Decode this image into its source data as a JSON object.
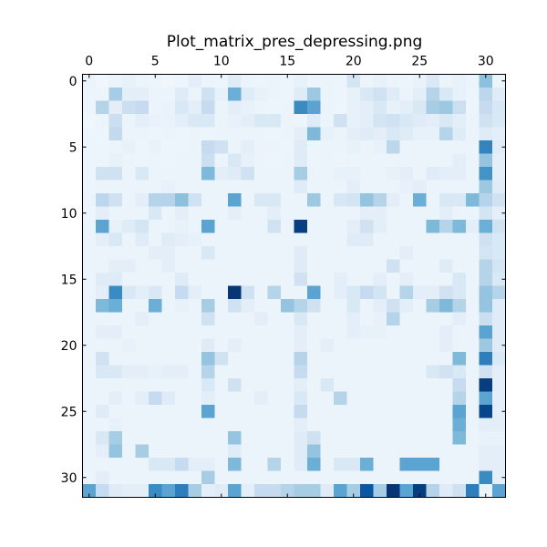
{
  "chart_data": {
    "type": "heatmap",
    "title": "Plot_matrix_pres_depressing.png",
    "xlabel": "",
    "ylabel": "",
    "rows": 32,
    "cols": 32,
    "x_ticks": [
      0,
      5,
      10,
      15,
      20,
      25,
      30
    ],
    "y_ticks": [
      0,
      5,
      10,
      15,
      20,
      25,
      30
    ],
    "x_axis_position": "top",
    "colormap": "Blues",
    "vmin": 0,
    "vmax": 1,
    "grid": false,
    "colorbar": false,
    "values": [
      [
        0.06,
        0.04,
        0.06,
        0.08,
        0.06,
        0.05,
        0.04,
        0.05,
        0.1,
        0.06,
        0.05,
        0.12,
        0.06,
        0.05,
        0.06,
        0.05,
        0.08,
        0.05,
        0.06,
        0.05,
        0.18,
        0.06,
        0.08,
        0.06,
        0.05,
        0.07,
        0.14,
        0.06,
        0.08,
        0.06,
        0.42,
        0.06
      ],
      [
        0.05,
        0.05,
        0.35,
        0.1,
        0.1,
        0.06,
        0.06,
        0.12,
        0.06,
        0.2,
        0.08,
        0.5,
        0.12,
        0.08,
        0.06,
        0.05,
        0.12,
        0.38,
        0.06,
        0.05,
        0.08,
        0.15,
        0.2,
        0.12,
        0.06,
        0.1,
        0.3,
        0.15,
        0.08,
        0.05,
        0.28,
        0.12
      ],
      [
        0.05,
        0.3,
        0.1,
        0.22,
        0.25,
        0.06,
        0.07,
        0.15,
        0.1,
        0.25,
        0.06,
        0.1,
        0.08,
        0.06,
        0.05,
        0.06,
        0.65,
        0.55,
        0.06,
        0.05,
        0.08,
        0.1,
        0.15,
        0.08,
        0.1,
        0.15,
        0.35,
        0.38,
        0.22,
        0.05,
        0.25,
        0.16
      ],
      [
        0.04,
        0.06,
        0.22,
        0.06,
        0.1,
        0.07,
        0.07,
        0.1,
        0.15,
        0.15,
        0.06,
        0.08,
        0.1,
        0.15,
        0.15,
        0.06,
        0.05,
        0.12,
        0.06,
        0.2,
        0.08,
        0.1,
        0.18,
        0.2,
        0.15,
        0.12,
        0.1,
        0.15,
        0.1,
        0.06,
        0.2,
        0.15
      ],
      [
        0.05,
        0.05,
        0.26,
        0.06,
        0.06,
        0.05,
        0.06,
        0.05,
        0.06,
        0.05,
        0.06,
        0.06,
        0.06,
        0.06,
        0.05,
        0.06,
        0.1,
        0.45,
        0.08,
        0.06,
        0.1,
        0.12,
        0.1,
        0.15,
        0.12,
        0.08,
        0.08,
        0.3,
        0.12,
        0.06,
        0.12,
        0.1
      ],
      [
        0.05,
        0.05,
        0.06,
        0.08,
        0.05,
        0.07,
        0.05,
        0.05,
        0.06,
        0.25,
        0.2,
        0.06,
        0.1,
        0.06,
        0.06,
        0.05,
        0.12,
        0.05,
        0.06,
        0.06,
        0.08,
        0.06,
        0.08,
        0.28,
        0.06,
        0.06,
        0.06,
        0.06,
        0.06,
        0.06,
        0.68,
        0.12
      ],
      [
        0.05,
        0.05,
        0.08,
        0.06,
        0.05,
        0.06,
        0.05,
        0.06,
        0.06,
        0.22,
        0.06,
        0.15,
        0.08,
        0.06,
        0.05,
        0.06,
        0.12,
        0.05,
        0.06,
        0.05,
        0.06,
        0.06,
        0.06,
        0.06,
        0.06,
        0.06,
        0.06,
        0.06,
        0.1,
        0.06,
        0.4,
        0.1
      ],
      [
        0.05,
        0.2,
        0.2,
        0.06,
        0.15,
        0.06,
        0.06,
        0.06,
        0.06,
        0.45,
        0.1,
        0.12,
        0.2,
        0.06,
        0.06,
        0.06,
        0.35,
        0.06,
        0.06,
        0.08,
        0.08,
        0.06,
        0.06,
        0.08,
        0.1,
        0.06,
        0.12,
        0.1,
        0.1,
        0.06,
        0.62,
        0.1
      ],
      [
        0.05,
        0.06,
        0.06,
        0.06,
        0.06,
        0.06,
        0.08,
        0.06,
        0.06,
        0.06,
        0.06,
        0.06,
        0.06,
        0.06,
        0.06,
        0.06,
        0.12,
        0.06,
        0.06,
        0.06,
        0.1,
        0.06,
        0.06,
        0.06,
        0.08,
        0.1,
        0.06,
        0.06,
        0.06,
        0.06,
        0.38,
        0.12
      ],
      [
        0.06,
        0.28,
        0.2,
        0.06,
        0.1,
        0.3,
        0.3,
        0.42,
        0.2,
        0.06,
        0.06,
        0.55,
        0.06,
        0.15,
        0.15,
        0.06,
        0.06,
        0.38,
        0.06,
        0.16,
        0.18,
        0.4,
        0.3,
        0.1,
        0.06,
        0.5,
        0.06,
        0.15,
        0.15,
        0.45,
        0.3,
        0.2
      ],
      [
        0.05,
        0.1,
        0.06,
        0.06,
        0.06,
        0.15,
        0.06,
        0.1,
        0.06,
        0.06,
        0.06,
        0.1,
        0.06,
        0.06,
        0.1,
        0.06,
        0.06,
        0.06,
        0.06,
        0.06,
        0.06,
        0.1,
        0.1,
        0.06,
        0.06,
        0.06,
        0.06,
        0.1,
        0.06,
        0.06,
        0.18,
        0.1
      ],
      [
        0.06,
        0.55,
        0.08,
        0.12,
        0.18,
        0.06,
        0.06,
        0.08,
        0.06,
        0.55,
        0.06,
        0.06,
        0.06,
        0.06,
        0.2,
        0.06,
        0.95,
        0.06,
        0.06,
        0.06,
        0.1,
        0.2,
        0.1,
        0.06,
        0.06,
        0.06,
        0.45,
        0.3,
        0.45,
        0.1,
        0.5,
        0.2
      ],
      [
        0.06,
        0.1,
        0.15,
        0.06,
        0.12,
        0.06,
        0.12,
        0.1,
        0.08,
        0.06,
        0.06,
        0.06,
        0.06,
        0.06,
        0.06,
        0.06,
        0.06,
        0.06,
        0.06,
        0.06,
        0.12,
        0.12,
        0.06,
        0.06,
        0.06,
        0.06,
        0.06,
        0.06,
        0.06,
        0.06,
        0.2,
        0.15
      ],
      [
        0.06,
        0.06,
        0.06,
        0.06,
        0.06,
        0.1,
        0.1,
        0.06,
        0.06,
        0.15,
        0.06,
        0.06,
        0.06,
        0.06,
        0.06,
        0.06,
        0.12,
        0.06,
        0.06,
        0.06,
        0.06,
        0.06,
        0.06,
        0.06,
        0.1,
        0.06,
        0.06,
        0.06,
        0.06,
        0.06,
        0.18,
        0.15
      ],
      [
        0.06,
        0.06,
        0.1,
        0.1,
        0.06,
        0.06,
        0.1,
        0.06,
        0.06,
        0.06,
        0.06,
        0.06,
        0.06,
        0.06,
        0.06,
        0.06,
        0.12,
        0.06,
        0.06,
        0.06,
        0.06,
        0.06,
        0.06,
        0.2,
        0.06,
        0.06,
        0.06,
        0.12,
        0.06,
        0.06,
        0.3,
        0.18
      ],
      [
        0.06,
        0.12,
        0.12,
        0.06,
        0.06,
        0.06,
        0.06,
        0.12,
        0.06,
        0.06,
        0.06,
        0.06,
        0.06,
        0.06,
        0.06,
        0.06,
        0.2,
        0.06,
        0.06,
        0.1,
        0.06,
        0.06,
        0.1,
        0.06,
        0.1,
        0.06,
        0.06,
        0.06,
        0.15,
        0.06,
        0.3,
        0.15
      ],
      [
        0.06,
        0.1,
        0.65,
        0.15,
        0.1,
        0.15,
        0.06,
        0.25,
        0.1,
        0.06,
        0.06,
        0.98,
        0.2,
        0.06,
        0.3,
        0.06,
        0.06,
        0.55,
        0.06,
        0.1,
        0.15,
        0.25,
        0.18,
        0.06,
        0.3,
        0.1,
        0.1,
        0.2,
        0.15,
        0.06,
        0.4,
        0.3
      ],
      [
        0.06,
        0.45,
        0.5,
        0.06,
        0.06,
        0.5,
        0.06,
        0.08,
        0.06,
        0.35,
        0.06,
        0.2,
        0.1,
        0.06,
        0.06,
        0.4,
        0.3,
        0.2,
        0.06,
        0.06,
        0.15,
        0.06,
        0.1,
        0.2,
        0.1,
        0.06,
        0.35,
        0.45,
        0.3,
        0.06,
        0.4,
        0.12
      ],
      [
        0.06,
        0.06,
        0.06,
        0.06,
        0.1,
        0.06,
        0.06,
        0.06,
        0.06,
        0.2,
        0.06,
        0.06,
        0.06,
        0.1,
        0.06,
        0.06,
        0.15,
        0.06,
        0.06,
        0.06,
        0.1,
        0.06,
        0.08,
        0.3,
        0.06,
        0.06,
        0.06,
        0.06,
        0.1,
        0.06,
        0.22,
        0.12
      ],
      [
        0.06,
        0.1,
        0.1,
        0.06,
        0.06,
        0.06,
        0.06,
        0.06,
        0.06,
        0.06,
        0.06,
        0.06,
        0.06,
        0.06,
        0.06,
        0.06,
        0.1,
        0.06,
        0.06,
        0.06,
        0.1,
        0.08,
        0.08,
        0.06,
        0.06,
        0.06,
        0.06,
        0.1,
        0.06,
        0.06,
        0.55,
        0.12
      ],
      [
        0.06,
        0.06,
        0.06,
        0.08,
        0.06,
        0.06,
        0.06,
        0.06,
        0.06,
        0.12,
        0.06,
        0.1,
        0.06,
        0.06,
        0.06,
        0.06,
        0.1,
        0.06,
        0.1,
        0.06,
        0.06,
        0.06,
        0.06,
        0.06,
        0.06,
        0.06,
        0.06,
        0.1,
        0.06,
        0.06,
        0.38,
        0.12
      ],
      [
        0.06,
        0.2,
        0.06,
        0.06,
        0.06,
        0.06,
        0.06,
        0.06,
        0.06,
        0.4,
        0.2,
        0.06,
        0.06,
        0.06,
        0.06,
        0.06,
        0.3,
        0.06,
        0.06,
        0.06,
        0.06,
        0.06,
        0.06,
        0.06,
        0.06,
        0.06,
        0.06,
        0.06,
        0.45,
        0.06,
        0.7,
        0.15
      ],
      [
        0.06,
        0.15,
        0.15,
        0.1,
        0.1,
        0.08,
        0.1,
        0.1,
        0.06,
        0.3,
        0.06,
        0.06,
        0.06,
        0.06,
        0.06,
        0.06,
        0.25,
        0.06,
        0.06,
        0.06,
        0.06,
        0.06,
        0.06,
        0.06,
        0.06,
        0.06,
        0.15,
        0.2,
        0.15,
        0.06,
        0.2,
        0.1
      ],
      [
        0.06,
        0.06,
        0.06,
        0.06,
        0.06,
        0.06,
        0.06,
        0.06,
        0.06,
        0.15,
        0.06,
        0.2,
        0.06,
        0.06,
        0.06,
        0.06,
        0.1,
        0.06,
        0.15,
        0.06,
        0.06,
        0.06,
        0.06,
        0.06,
        0.06,
        0.06,
        0.06,
        0.06,
        0.25,
        0.06,
        0.95,
        0.1
      ],
      [
        0.06,
        0.06,
        0.1,
        0.06,
        0.1,
        0.25,
        0.12,
        0.06,
        0.06,
        0.1,
        0.06,
        0.06,
        0.06,
        0.1,
        0.06,
        0.06,
        0.15,
        0.06,
        0.06,
        0.3,
        0.06,
        0.06,
        0.06,
        0.06,
        0.06,
        0.06,
        0.06,
        0.06,
        0.3,
        0.06,
        0.55,
        0.1
      ],
      [
        0.06,
        0.12,
        0.06,
        0.06,
        0.06,
        0.06,
        0.06,
        0.06,
        0.06,
        0.55,
        0.06,
        0.06,
        0.06,
        0.06,
        0.06,
        0.06,
        0.25,
        0.06,
        0.06,
        0.06,
        0.06,
        0.06,
        0.06,
        0.06,
        0.06,
        0.06,
        0.06,
        0.06,
        0.55,
        0.06,
        0.92,
        0.1
      ],
      [
        0.06,
        0.06,
        0.08,
        0.06,
        0.06,
        0.06,
        0.06,
        0.06,
        0.06,
        0.06,
        0.06,
        0.06,
        0.06,
        0.06,
        0.06,
        0.06,
        0.1,
        0.06,
        0.06,
        0.06,
        0.06,
        0.06,
        0.06,
        0.06,
        0.06,
        0.06,
        0.06,
        0.06,
        0.5,
        0.06,
        0.1,
        0.1
      ],
      [
        0.06,
        0.15,
        0.35,
        0.06,
        0.06,
        0.06,
        0.06,
        0.06,
        0.06,
        0.06,
        0.06,
        0.4,
        0.06,
        0.06,
        0.06,
        0.06,
        0.12,
        0.2,
        0.06,
        0.06,
        0.06,
        0.06,
        0.06,
        0.06,
        0.06,
        0.06,
        0.06,
        0.06,
        0.45,
        0.06,
        0.08,
        0.08
      ],
      [
        0.06,
        0.1,
        0.4,
        0.06,
        0.35,
        0.06,
        0.06,
        0.06,
        0.06,
        0.06,
        0.06,
        0.12,
        0.06,
        0.06,
        0.06,
        0.06,
        0.12,
        0.4,
        0.06,
        0.06,
        0.06,
        0.06,
        0.06,
        0.06,
        0.06,
        0.06,
        0.06,
        0.06,
        0.06,
        0.06,
        0.1,
        0.1
      ],
      [
        0.06,
        0.06,
        0.06,
        0.06,
        0.06,
        0.15,
        0.15,
        0.25,
        0.1,
        0.1,
        0.06,
        0.45,
        0.06,
        0.06,
        0.3,
        0.06,
        0.12,
        0.5,
        0.06,
        0.15,
        0.15,
        0.5,
        0.06,
        0.06,
        0.55,
        0.55,
        0.55,
        0.06,
        0.06,
        0.06,
        0.1,
        0.1
      ],
      [
        0.06,
        0.1,
        0.06,
        0.06,
        0.06,
        0.06,
        0.06,
        0.06,
        0.06,
        0.35,
        0.06,
        0.06,
        0.06,
        0.06,
        0.06,
        0.06,
        0.06,
        0.06,
        0.06,
        0.06,
        0.06,
        0.06,
        0.06,
        0.06,
        0.06,
        0.06,
        0.06,
        0.06,
        0.06,
        0.06,
        0.65,
        0.1
      ],
      [
        0.55,
        0.25,
        0.12,
        0.1,
        0.1,
        0.65,
        0.55,
        0.7,
        0.35,
        0.1,
        0.12,
        0.55,
        0.1,
        0.25,
        0.25,
        0.3,
        0.35,
        0.35,
        0.12,
        0.55,
        0.35,
        0.85,
        0.35,
        0.98,
        0.55,
        0.95,
        0.3,
        0.12,
        0.2,
        0.7,
        0.06,
        0.55
      ]
    ]
  }
}
